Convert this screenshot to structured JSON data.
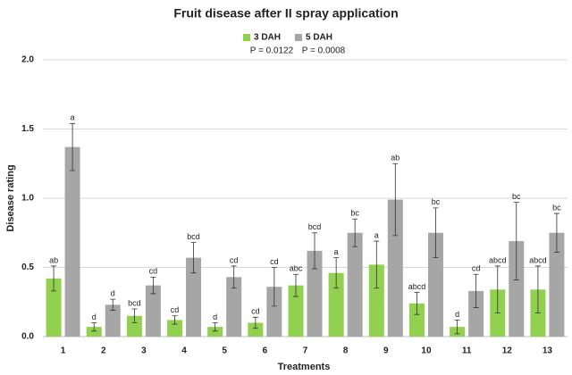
{
  "chart_data": {
    "type": "bar",
    "title": "Fruit disease after II spray application",
    "x_label": "Treatments",
    "y_label": "Disease rating",
    "categories": [
      "1",
      "2",
      "3",
      "4",
      "5",
      "6",
      "7",
      "8",
      "9",
      "10",
      "11",
      "12",
      "13"
    ],
    "series": [
      {
        "name": "3 DAH",
        "color": "#92d050",
        "letter_color": "#3aa58a",
        "p_label": "P = 0.0122",
        "values": [
          0.42,
          0.07,
          0.15,
          0.12,
          0.07,
          0.1,
          0.37,
          0.46,
          0.52,
          0.24,
          0.07,
          0.34,
          0.34
        ],
        "errors": [
          0.09,
          0.03,
          0.05,
          0.03,
          0.03,
          0.04,
          0.08,
          0.11,
          0.17,
          0.08,
          0.05,
          0.17,
          0.17
        ],
        "letters": [
          "ab",
          "d",
          "bcd",
          "cd",
          "d",
          "cd",
          "abc",
          "a",
          "a",
          "abcd",
          "d",
          "abcd",
          "abcd"
        ]
      },
      {
        "name": "5 DAH",
        "color": "#a6a6a6",
        "letter_color": "#222222",
        "p_label": "P = 0.0008",
        "values": [
          1.37,
          0.23,
          0.37,
          0.57,
          0.43,
          0.36,
          0.62,
          0.75,
          0.99,
          0.75,
          0.33,
          0.69,
          0.75
        ],
        "errors": [
          0.17,
          0.04,
          0.06,
          0.11,
          0.08,
          0.14,
          0.13,
          0.1,
          0.26,
          0.18,
          0.12,
          0.28,
          0.14
        ],
        "letters": [
          "a",
          "d",
          "cd",
          "bcd",
          "cd",
          "cd",
          "bcd",
          "bc",
          "ab",
          "bc",
          "cd",
          "bc",
          "bc"
        ]
      }
    ],
    "ylim": [
      0,
      2.0
    ],
    "yticks": [
      {
        "value": 0,
        "label": "0.0"
      },
      {
        "value": 0.5,
        "label": "0.5"
      },
      {
        "value": 1.0,
        "label": "1.0"
      },
      {
        "value": 1.5,
        "label": "1.5"
      },
      {
        "value": 2.0,
        "label": "2.0"
      }
    ],
    "grid": true
  }
}
